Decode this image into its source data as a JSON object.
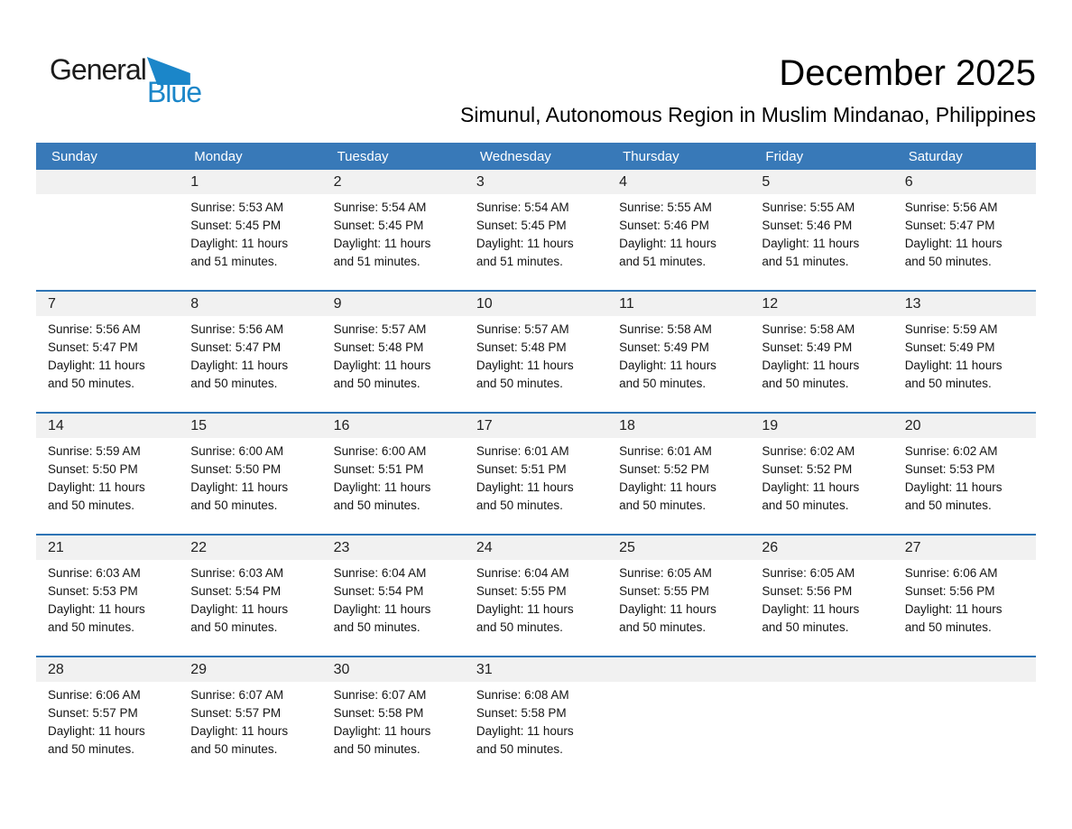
{
  "logo": {
    "general": "General",
    "blue": "Blue"
  },
  "header": {
    "title": "December 2025",
    "subtitle": "Simunul, Autonomous Region in Muslim Mindanao, Philippines"
  },
  "weekdays": [
    "Sunday",
    "Monday",
    "Tuesday",
    "Wednesday",
    "Thursday",
    "Friday",
    "Saturday"
  ],
  "labels": {
    "sunrise": "Sunrise:",
    "sunset": "Sunset:",
    "daylight": "Daylight:"
  },
  "colors": {
    "header_bg": "#3879B8",
    "header_text": "#FFFFFF",
    "separator": "#2E74B5",
    "day_band": "#F1F1F1",
    "logo_blue": "#1B86C9"
  },
  "weeks": [
    [
      null,
      {
        "day": "1",
        "sunrise": "5:53 AM",
        "sunset": "5:45 PM",
        "daylight": "11 hours and 51 minutes."
      },
      {
        "day": "2",
        "sunrise": "5:54 AM",
        "sunset": "5:45 PM",
        "daylight": "11 hours and 51 minutes."
      },
      {
        "day": "3",
        "sunrise": "5:54 AM",
        "sunset": "5:45 PM",
        "daylight": "11 hours and 51 minutes."
      },
      {
        "day": "4",
        "sunrise": "5:55 AM",
        "sunset": "5:46 PM",
        "daylight": "11 hours and 51 minutes."
      },
      {
        "day": "5",
        "sunrise": "5:55 AM",
        "sunset": "5:46 PM",
        "daylight": "11 hours and 51 minutes."
      },
      {
        "day": "6",
        "sunrise": "5:56 AM",
        "sunset": "5:47 PM",
        "daylight": "11 hours and 50 minutes."
      }
    ],
    [
      {
        "day": "7",
        "sunrise": "5:56 AM",
        "sunset": "5:47 PM",
        "daylight": "11 hours and 50 minutes."
      },
      {
        "day": "8",
        "sunrise": "5:56 AM",
        "sunset": "5:47 PM",
        "daylight": "11 hours and 50 minutes."
      },
      {
        "day": "9",
        "sunrise": "5:57 AM",
        "sunset": "5:48 PM",
        "daylight": "11 hours and 50 minutes."
      },
      {
        "day": "10",
        "sunrise": "5:57 AM",
        "sunset": "5:48 PM",
        "daylight": "11 hours and 50 minutes."
      },
      {
        "day": "11",
        "sunrise": "5:58 AM",
        "sunset": "5:49 PM",
        "daylight": "11 hours and 50 minutes."
      },
      {
        "day": "12",
        "sunrise": "5:58 AM",
        "sunset": "5:49 PM",
        "daylight": "11 hours and 50 minutes."
      },
      {
        "day": "13",
        "sunrise": "5:59 AM",
        "sunset": "5:49 PM",
        "daylight": "11 hours and 50 minutes."
      }
    ],
    [
      {
        "day": "14",
        "sunrise": "5:59 AM",
        "sunset": "5:50 PM",
        "daylight": "11 hours and 50 minutes."
      },
      {
        "day": "15",
        "sunrise": "6:00 AM",
        "sunset": "5:50 PM",
        "daylight": "11 hours and 50 minutes."
      },
      {
        "day": "16",
        "sunrise": "6:00 AM",
        "sunset": "5:51 PM",
        "daylight": "11 hours and 50 minutes."
      },
      {
        "day": "17",
        "sunrise": "6:01 AM",
        "sunset": "5:51 PM",
        "daylight": "11 hours and 50 minutes."
      },
      {
        "day": "18",
        "sunrise": "6:01 AM",
        "sunset": "5:52 PM",
        "daylight": "11 hours and 50 minutes."
      },
      {
        "day": "19",
        "sunrise": "6:02 AM",
        "sunset": "5:52 PM",
        "daylight": "11 hours and 50 minutes."
      },
      {
        "day": "20",
        "sunrise": "6:02 AM",
        "sunset": "5:53 PM",
        "daylight": "11 hours and 50 minutes."
      }
    ],
    [
      {
        "day": "21",
        "sunrise": "6:03 AM",
        "sunset": "5:53 PM",
        "daylight": "11 hours and 50 minutes."
      },
      {
        "day": "22",
        "sunrise": "6:03 AM",
        "sunset": "5:54 PM",
        "daylight": "11 hours and 50 minutes."
      },
      {
        "day": "23",
        "sunrise": "6:04 AM",
        "sunset": "5:54 PM",
        "daylight": "11 hours and 50 minutes."
      },
      {
        "day": "24",
        "sunrise": "6:04 AM",
        "sunset": "5:55 PM",
        "daylight": "11 hours and 50 minutes."
      },
      {
        "day": "25",
        "sunrise": "6:05 AM",
        "sunset": "5:55 PM",
        "daylight": "11 hours and 50 minutes."
      },
      {
        "day": "26",
        "sunrise": "6:05 AM",
        "sunset": "5:56 PM",
        "daylight": "11 hours and 50 minutes."
      },
      {
        "day": "27",
        "sunrise": "6:06 AM",
        "sunset": "5:56 PM",
        "daylight": "11 hours and 50 minutes."
      }
    ],
    [
      {
        "day": "28",
        "sunrise": "6:06 AM",
        "sunset": "5:57 PM",
        "daylight": "11 hours and 50 minutes."
      },
      {
        "day": "29",
        "sunrise": "6:07 AM",
        "sunset": "5:57 PM",
        "daylight": "11 hours and 50 minutes."
      },
      {
        "day": "30",
        "sunrise": "6:07 AM",
        "sunset": "5:58 PM",
        "daylight": "11 hours and 50 minutes."
      },
      {
        "day": "31",
        "sunrise": "6:08 AM",
        "sunset": "5:58 PM",
        "daylight": "11 hours and 50 minutes."
      },
      null,
      null,
      null
    ]
  ]
}
